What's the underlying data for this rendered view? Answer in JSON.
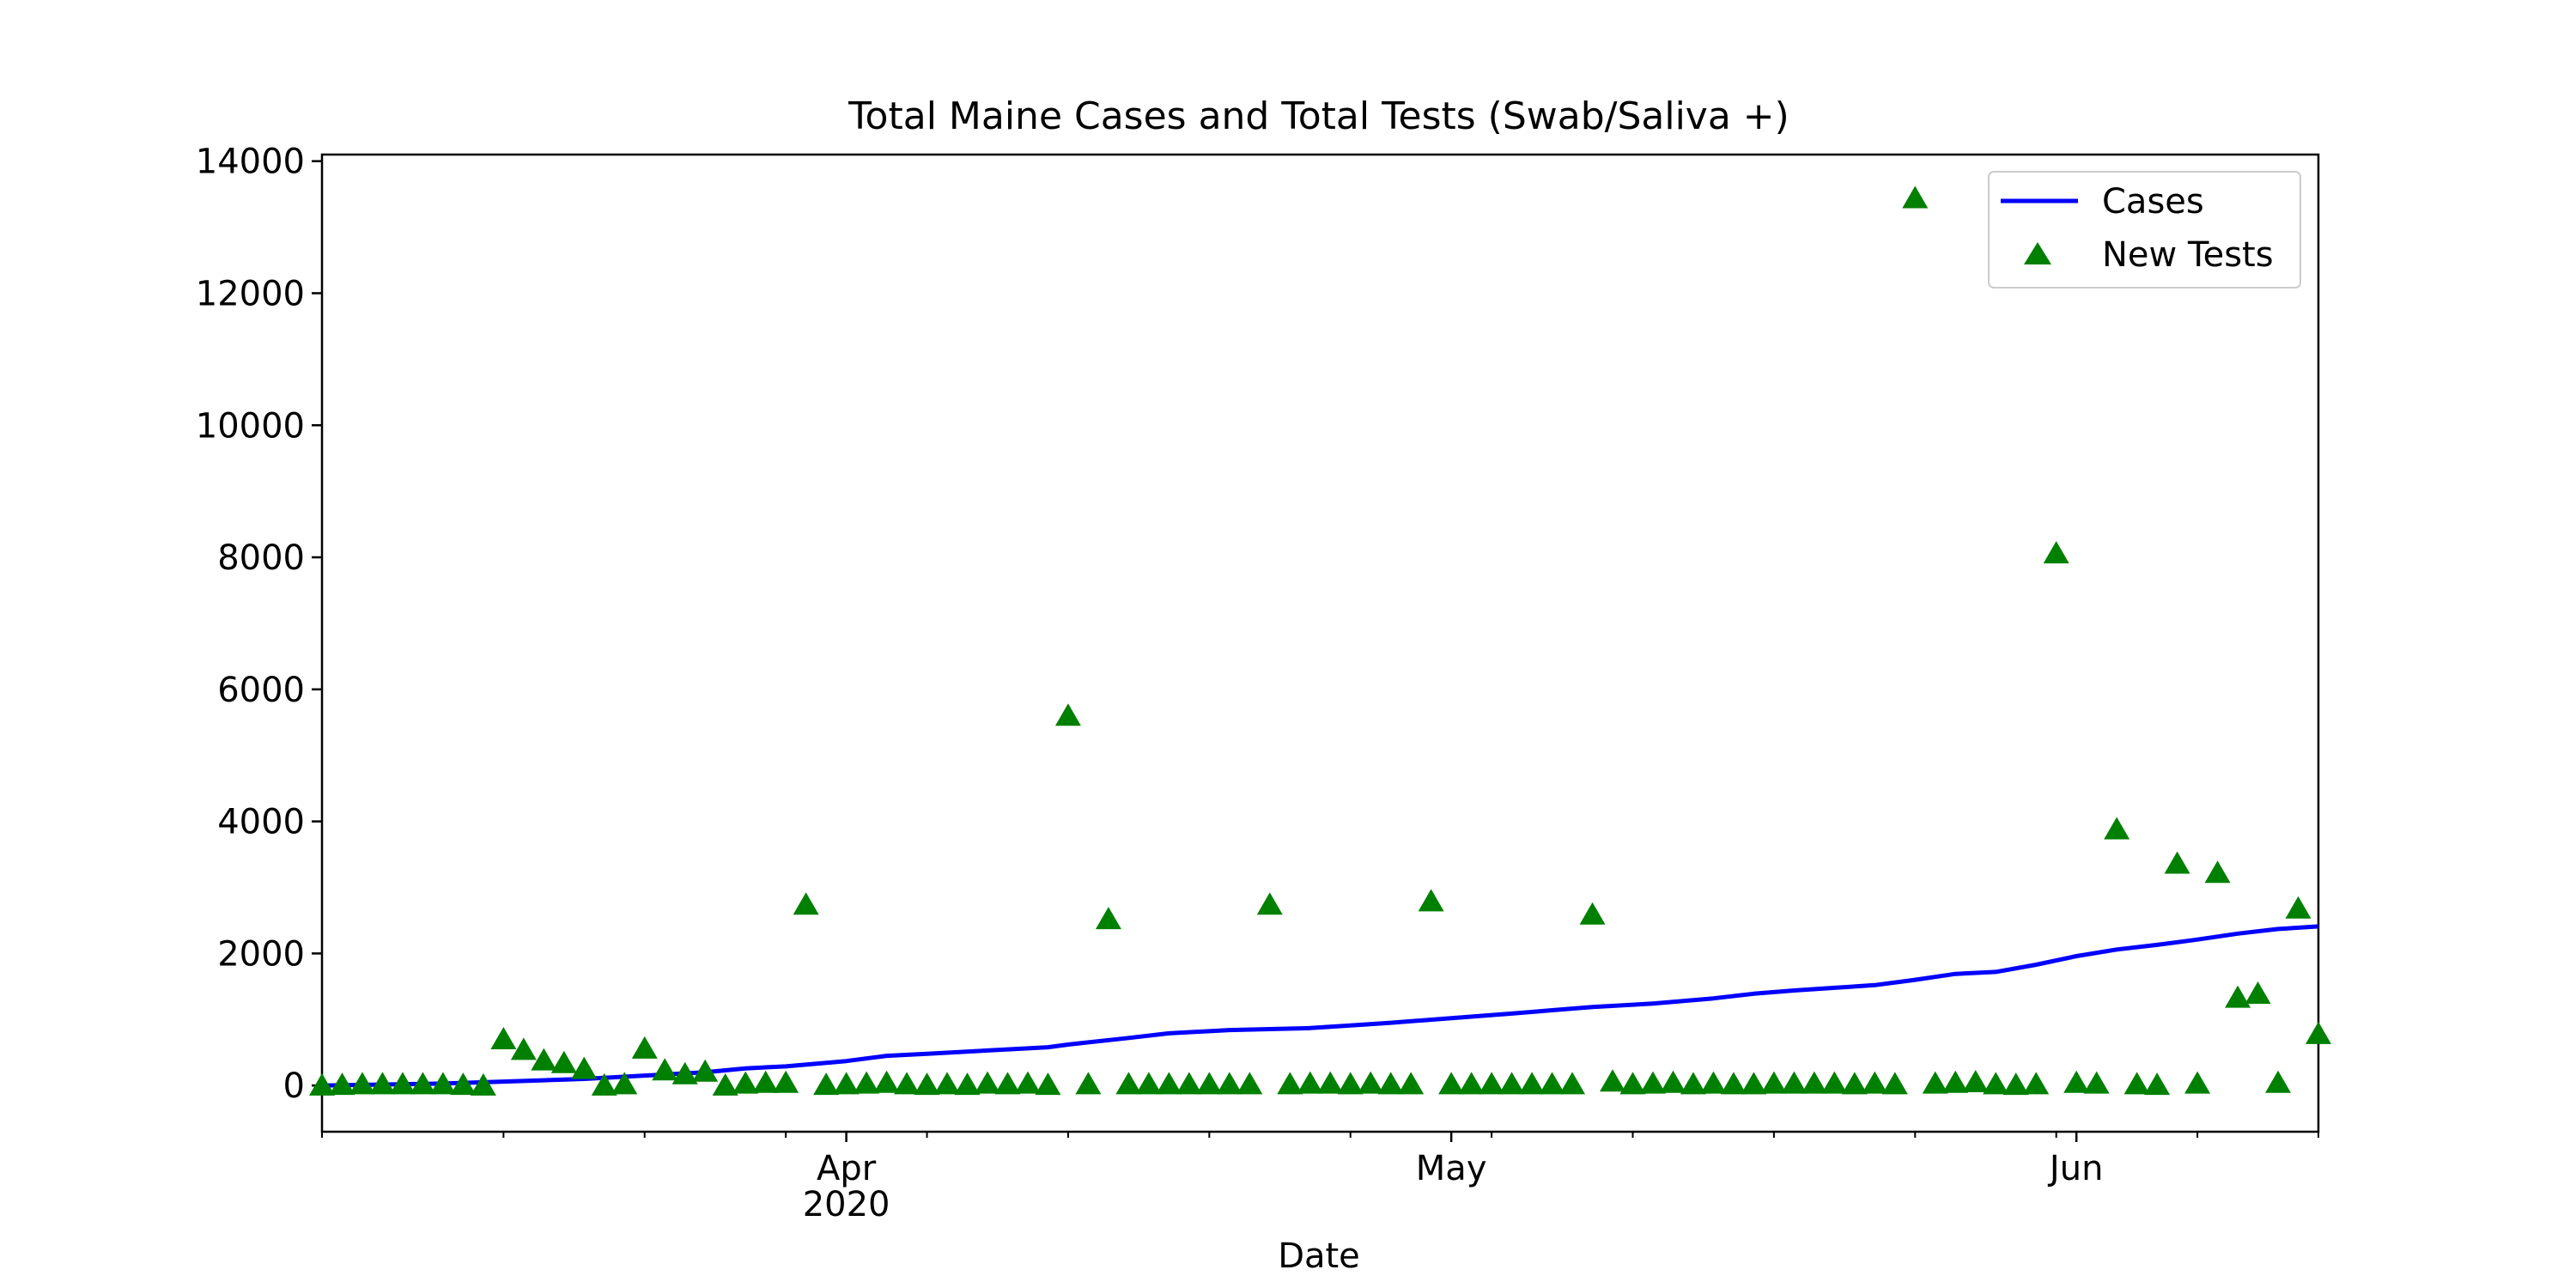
{
  "chart_data": {
    "type": "line",
    "title": "Total Maine Cases and Total Tests (Swab/Saliva +)",
    "xlabel": "Date",
    "ylabel": "",
    "x_range": [
      "2020-03-06",
      "2020-06-13"
    ],
    "ylim": [
      -700,
      14100
    ],
    "yticks": [
      0,
      2000,
      4000,
      6000,
      8000,
      10000,
      12000,
      14000
    ],
    "xticks_major": [
      {
        "date": "2020-04-01",
        "label": "Apr",
        "sublabel": "2020"
      },
      {
        "date": "2020-05-01",
        "label": "May",
        "sublabel": ""
      },
      {
        "date": "2020-06-01",
        "label": "Jun",
        "sublabel": ""
      }
    ],
    "xticks_minor": [
      "2020-03-06",
      "2020-03-15",
      "2020-03-22",
      "2020-03-29",
      "2020-04-05",
      "2020-04-12",
      "2020-04-19",
      "2020-04-26",
      "2020-05-03",
      "2020-05-10",
      "2020-05-17",
      "2020-05-24",
      "2020-05-31",
      "2020-06-07",
      "2020-06-13"
    ],
    "grid": false,
    "legend_position": "top-right",
    "series": [
      {
        "name": "Cases",
        "kind": "line",
        "color": "#0000ff",
        "x": [
          "2020-03-06",
          "2020-03-12",
          "2020-03-15",
          "2020-03-19",
          "2020-03-22",
          "2020-03-25",
          "2020-03-27",
          "2020-03-29",
          "2020-04-01",
          "2020-04-03",
          "2020-04-05",
          "2020-04-08",
          "2020-04-11",
          "2020-04-12",
          "2020-04-15",
          "2020-04-17",
          "2020-04-20",
          "2020-04-24",
          "2020-04-26",
          "2020-04-28",
          "2020-05-01",
          "2020-05-04",
          "2020-05-06",
          "2020-05-08",
          "2020-05-11",
          "2020-05-14",
          "2020-05-16",
          "2020-05-18",
          "2020-05-20",
          "2020-05-22",
          "2020-05-24",
          "2020-05-26",
          "2020-05-28",
          "2020-05-30",
          "2020-06-01",
          "2020-06-03",
          "2020-06-05",
          "2020-06-07",
          "2020-06-09",
          "2020-06-11",
          "2020-06-13"
        ],
        "values": [
          0,
          30,
          60,
          100,
          150,
          200,
          260,
          290,
          370,
          450,
          480,
          530,
          580,
          620,
          720,
          790,
          840,
          870,
          910,
          950,
          1020,
          1090,
          1140,
          1190,
          1240,
          1320,
          1390,
          1440,
          1480,
          1520,
          1600,
          1690,
          1720,
          1830,
          1960,
          2060,
          2130,
          2210,
          2300,
          2370,
          2410
        ]
      },
      {
        "name": "New Tests",
        "kind": "scatter",
        "marker": "triangle-up",
        "color": "#008000",
        "x": [
          "2020-03-06",
          "2020-03-07",
          "2020-03-08",
          "2020-03-09",
          "2020-03-10",
          "2020-03-11",
          "2020-03-12",
          "2020-03-13",
          "2020-03-14",
          "2020-03-15",
          "2020-03-16",
          "2020-03-17",
          "2020-03-18",
          "2020-03-19",
          "2020-03-20",
          "2020-03-21",
          "2020-03-22",
          "2020-03-23",
          "2020-03-24",
          "2020-03-25",
          "2020-03-26",
          "2020-03-27",
          "2020-03-28",
          "2020-03-29",
          "2020-03-30",
          "2020-03-31",
          "2020-04-01",
          "2020-04-02",
          "2020-04-03",
          "2020-04-04",
          "2020-04-05",
          "2020-04-06",
          "2020-04-07",
          "2020-04-08",
          "2020-04-09",
          "2020-04-10",
          "2020-04-11",
          "2020-04-12",
          "2020-04-13",
          "2020-04-14",
          "2020-04-15",
          "2020-04-16",
          "2020-04-17",
          "2020-04-18",
          "2020-04-19",
          "2020-04-20",
          "2020-04-21",
          "2020-04-22",
          "2020-04-23",
          "2020-04-24",
          "2020-04-25",
          "2020-04-26",
          "2020-04-27",
          "2020-04-28",
          "2020-04-29",
          "2020-04-30",
          "2020-05-01",
          "2020-05-02",
          "2020-05-03",
          "2020-05-04",
          "2020-05-05",
          "2020-05-06",
          "2020-05-07",
          "2020-05-08",
          "2020-05-09",
          "2020-05-10",
          "2020-05-11",
          "2020-05-12",
          "2020-05-13",
          "2020-05-14",
          "2020-05-15",
          "2020-05-16",
          "2020-05-17",
          "2020-05-18",
          "2020-05-19",
          "2020-05-20",
          "2020-05-21",
          "2020-05-22",
          "2020-05-23",
          "2020-05-24",
          "2020-05-25",
          "2020-05-26",
          "2020-05-27",
          "2020-05-28",
          "2020-05-29",
          "2020-05-30",
          "2020-05-31",
          "2020-06-01",
          "2020-06-02",
          "2020-06-03",
          "2020-06-04",
          "2020-06-05",
          "2020-06-06",
          "2020-06-07",
          "2020-06-08",
          "2020-06-09",
          "2020-06-10",
          "2020-06-11",
          "2020-06-12",
          "2020-06-13"
        ],
        "values": [
          0,
          10,
          20,
          20,
          20,
          20,
          20,
          10,
          0,
          700,
          540,
          380,
          340,
          250,
          0,
          20,
          560,
          230,
          170,
          210,
          0,
          30,
          40,
          40,
          2740,
          10,
          20,
          30,
          40,
          20,
          10,
          20,
          10,
          30,
          20,
          30,
          10,
          5600,
          20,
          2520,
          20,
          20,
          20,
          20,
          20,
          20,
          20,
          2740,
          20,
          30,
          30,
          20,
          30,
          20,
          20,
          2790,
          20,
          20,
          20,
          20,
          20,
          20,
          20,
          2590,
          60,
          20,
          30,
          40,
          20,
          30,
          20,
          20,
          30,
          30,
          30,
          30,
          20,
          30,
          20,
          13440,
          30,
          40,
          50,
          20,
          10,
          20,
          8060,
          40,
          30,
          3880,
          20,
          10,
          3360,
          30,
          3220,
          1330,
          1390,
          40,
          2680,
          780
        ]
      }
    ]
  }
}
